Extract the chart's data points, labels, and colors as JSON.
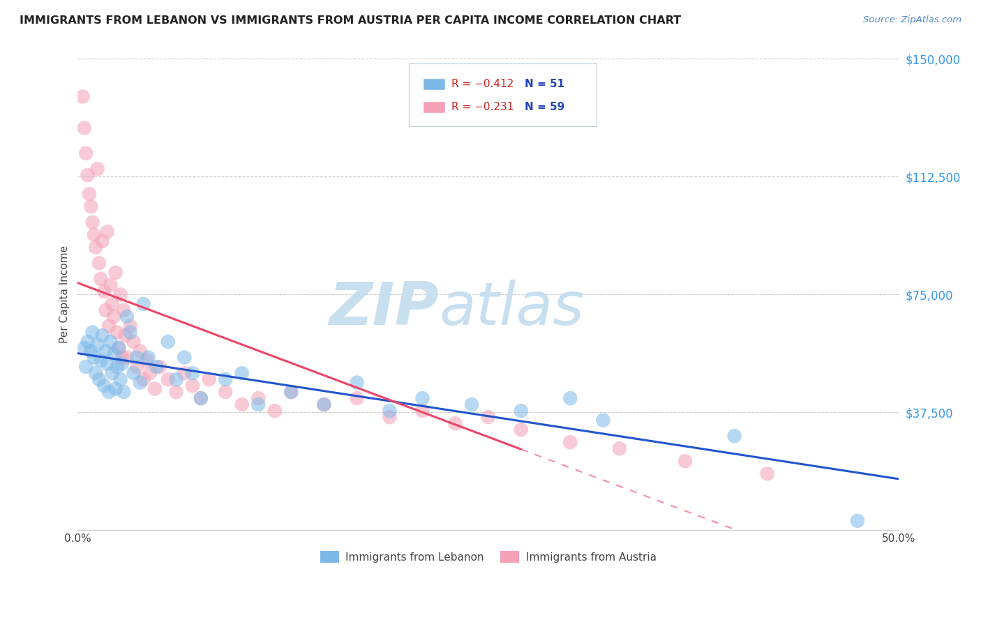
{
  "title": "IMMIGRANTS FROM LEBANON VS IMMIGRANTS FROM AUSTRIA PER CAPITA INCOME CORRELATION CHART",
  "source": "Source: ZipAtlas.com",
  "ylabel": "Per Capita Income",
  "xlim": [
    0.0,
    0.5
  ],
  "ylim": [
    0,
    150000
  ],
  "yticks": [
    0,
    37500,
    75000,
    112500,
    150000
  ],
  "ytick_labels": [
    "",
    "$37,500",
    "$75,000",
    "$112,500",
    "$150,000"
  ],
  "xticks": [
    0.0,
    0.1,
    0.2,
    0.3,
    0.4,
    0.5
  ],
  "xtick_labels": [
    "0.0%",
    "",
    "",
    "",
    "",
    "50.0%"
  ],
  "lebanon_color": "#7db8e8",
  "austria_color": "#f4a0b5",
  "lebanon_line_color": "#2255cc",
  "austria_line_color": "#ee4466",
  "lebanon_R": -0.412,
  "lebanon_N": 51,
  "austria_R": -0.231,
  "austria_N": 59,
  "background_color": "#ffffff",
  "grid_color": "#cccccc",
  "watermark_zip": "ZIP",
  "watermark_atlas": "atlas",
  "watermark_color": "#c8dff0",
  "lebanon_scatter_x": [
    0.004,
    0.005,
    0.006,
    0.008,
    0.009,
    0.01,
    0.011,
    0.012,
    0.013,
    0.014,
    0.015,
    0.016,
    0.017,
    0.018,
    0.019,
    0.02,
    0.021,
    0.022,
    0.023,
    0.024,
    0.025,
    0.026,
    0.027,
    0.028,
    0.03,
    0.032,
    0.034,
    0.036,
    0.038,
    0.04,
    0.043,
    0.048,
    0.055,
    0.06,
    0.065,
    0.07,
    0.075,
    0.09,
    0.1,
    0.11,
    0.13,
    0.15,
    0.17,
    0.19,
    0.21,
    0.24,
    0.27,
    0.3,
    0.32,
    0.4,
    0.475
  ],
  "lebanon_scatter_y": [
    58000,
    52000,
    60000,
    57000,
    63000,
    55000,
    50000,
    59000,
    48000,
    54000,
    62000,
    46000,
    57000,
    53000,
    44000,
    60000,
    50000,
    56000,
    45000,
    52000,
    58000,
    48000,
    53000,
    44000,
    68000,
    63000,
    50000,
    55000,
    47000,
    72000,
    55000,
    52000,
    60000,
    48000,
    55000,
    50000,
    42000,
    48000,
    50000,
    40000,
    44000,
    40000,
    47000,
    38000,
    42000,
    40000,
    38000,
    42000,
    35000,
    30000,
    3000
  ],
  "austria_scatter_x": [
    0.003,
    0.004,
    0.005,
    0.006,
    0.007,
    0.008,
    0.009,
    0.01,
    0.011,
    0.012,
    0.013,
    0.014,
    0.015,
    0.016,
    0.017,
    0.018,
    0.019,
    0.02,
    0.021,
    0.022,
    0.023,
    0.024,
    0.025,
    0.026,
    0.027,
    0.028,
    0.029,
    0.03,
    0.032,
    0.034,
    0.036,
    0.038,
    0.04,
    0.042,
    0.044,
    0.047,
    0.05,
    0.055,
    0.06,
    0.065,
    0.07,
    0.075,
    0.08,
    0.09,
    0.1,
    0.11,
    0.12,
    0.13,
    0.15,
    0.17,
    0.19,
    0.21,
    0.23,
    0.25,
    0.27,
    0.3,
    0.33,
    0.37,
    0.42
  ],
  "austria_scatter_y": [
    138000,
    128000,
    120000,
    113000,
    107000,
    103000,
    98000,
    94000,
    90000,
    115000,
    85000,
    80000,
    92000,
    76000,
    70000,
    95000,
    65000,
    78000,
    72000,
    68000,
    82000,
    63000,
    58000,
    75000,
    55000,
    70000,
    62000,
    55000,
    65000,
    60000,
    52000,
    57000,
    48000,
    54000,
    50000,
    45000,
    52000,
    48000,
    44000,
    50000,
    46000,
    42000,
    48000,
    44000,
    40000,
    42000,
    38000,
    44000,
    40000,
    42000,
    36000,
    38000,
    34000,
    36000,
    32000,
    28000,
    26000,
    22000,
    18000
  ],
  "legend_R1": "R = −0.412",
  "legend_N1": "N = 51",
  "legend_R2": "R = −0.231",
  "legend_N2": "N = 59"
}
